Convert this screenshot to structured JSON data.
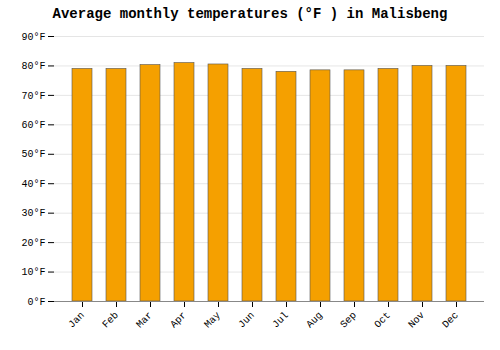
{
  "chart_data": {
    "type": "bar",
    "title": "Average monthly temperatures (°F ) in Malisbeng",
    "categories": [
      "Jan",
      "Feb",
      "Mar",
      "Apr",
      "May",
      "Jun",
      "Jul",
      "Aug",
      "Sep",
      "Oct",
      "Nov",
      "Dec"
    ],
    "values": [
      79.0,
      79.0,
      80.3,
      81.0,
      80.5,
      79.0,
      78.0,
      78.5,
      78.5,
      79.0,
      80.0,
      80.0
    ],
    "color": "#F5A000",
    "ylim": [
      0,
      90
    ],
    "yticks": [
      {
        "value": 0,
        "label": "0°F"
      },
      {
        "value": 10,
        "label": "10°F"
      },
      {
        "value": 20,
        "label": "20°F"
      },
      {
        "value": 30,
        "label": "30°F"
      },
      {
        "value": 40,
        "label": "40°F"
      },
      {
        "value": 50,
        "label": "50°F"
      },
      {
        "value": 60,
        "label": "60°F"
      },
      {
        "value": 70,
        "label": "70°F"
      },
      {
        "value": 80,
        "label": "80°F"
      },
      {
        "value": 90,
        "label": "90°F"
      }
    ],
    "grid": true
  }
}
